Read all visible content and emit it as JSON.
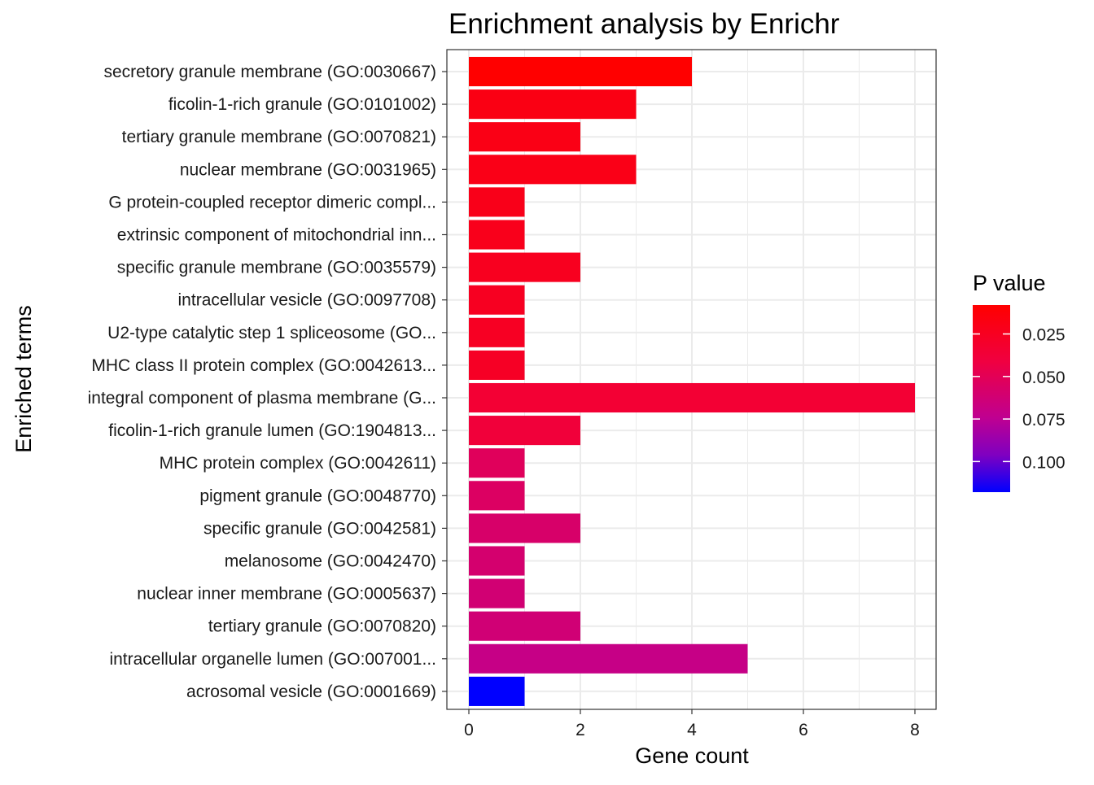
{
  "chart_data": {
    "type": "bar",
    "orientation": "horizontal",
    "title": "Enrichment analysis by Enrichr",
    "xlabel": "Gene count",
    "ylabel": "Enriched terms",
    "xlim": [
      -0.35,
      8.4
    ],
    "xticks": [
      0,
      2,
      4,
      6,
      8
    ],
    "xtick_labels": [
      "0",
      "2",
      "4",
      "6",
      "8"
    ],
    "grid": true,
    "legend": {
      "title": "P value",
      "placement": "right",
      "ticks": [
        0.025,
        0.05,
        0.075,
        0.1
      ],
      "tick_labels": [
        "0.025",
        "0.050",
        "0.075",
        "0.100"
      ],
      "range": [
        0.008,
        0.118
      ],
      "low_color": "#ff0000",
      "high_color": "#0000ff"
    },
    "categories": [
      "secretory granule membrane (GO:0030667)",
      "ficolin-1-rich granule (GO:0101002)",
      "tertiary granule membrane (GO:0070821)",
      "nuclear membrane (GO:0031965)",
      "G protein-coupled receptor dimeric compl...",
      "extrinsic component of mitochondrial inn...",
      "specific granule membrane (GO:0035579)",
      "intracellular vesicle (GO:0097708)",
      "U2-type catalytic step 1 spliceosome (GO...",
      "MHC class II protein complex (GO:0042613...",
      "integral component of plasma membrane (G...",
      "ficolin-1-rich granule lumen (GO:1904813...",
      "MHC protein complex (GO:0042611)",
      "pigment granule (GO:0048770)",
      "specific granule (GO:0042581)",
      "melanosome (GO:0042470)",
      "nuclear inner membrane (GO:0005637)",
      "tertiary granule (GO:0070820)",
      "intracellular organelle lumen (GO:007001...",
      "acrosomal vesicle (GO:0001669)"
    ],
    "values": [
      4,
      3,
      2,
      3,
      1,
      1,
      2,
      1,
      1,
      1,
      8,
      2,
      1,
      1,
      2,
      1,
      1,
      2,
      5,
      1
    ],
    "pvalues": [
      0.008,
      0.018,
      0.019,
      0.02,
      0.021,
      0.022,
      0.024,
      0.025,
      0.026,
      0.027,
      0.035,
      0.038,
      0.052,
      0.055,
      0.058,
      0.06,
      0.062,
      0.063,
      0.07,
      0.118
    ]
  }
}
